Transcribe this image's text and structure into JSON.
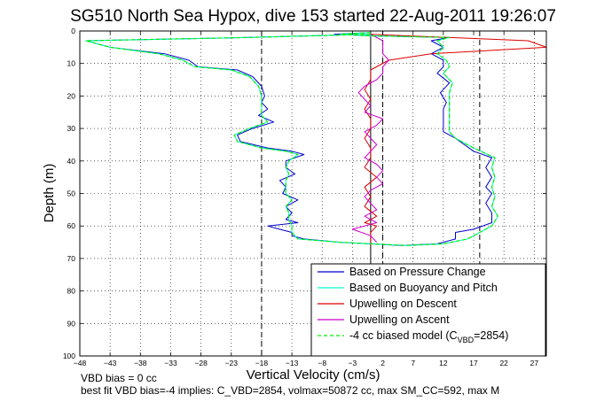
{
  "chart_data": {
    "type": "line",
    "title": "SG510 North Sea Hypox, dive 153 started 22-Aug-2011 19:26:07",
    "xlabel": "Vertical Velocity (cm/s)",
    "ylabel": "Depth (m)",
    "xlim": [
      -48,
      29
    ],
    "ylim": [
      0,
      100
    ],
    "y_reversed": true,
    "grid": true,
    "x_ticks": [
      -48,
      -43,
      -38,
      -33,
      -28,
      -23,
      -18,
      -13,
      -8,
      -3,
      2,
      7,
      12,
      17,
      22,
      27
    ],
    "y_ticks": [
      0,
      10,
      20,
      30,
      40,
      50,
      60,
      70,
      80,
      90,
      100
    ],
    "legend_position": "bottom-right",
    "vertical_lines": [
      {
        "x": -18,
        "style": "dashed"
      },
      {
        "x": 0,
        "style": "solid"
      },
      {
        "x": 2,
        "style": "dashed"
      },
      {
        "x": 18,
        "style": "dashed"
      }
    ],
    "series": [
      {
        "name": "Based on Pressure Change",
        "color": "#0000cc",
        "points": [
          [
            0,
            1
          ],
          [
            -20,
            2
          ],
          [
            -47,
            3
          ],
          [
            -43,
            5
          ],
          [
            -34,
            7
          ],
          [
            -30,
            9
          ],
          [
            -28.5,
            11
          ],
          [
            -22,
            12
          ],
          [
            -19.5,
            14
          ],
          [
            -18,
            17
          ],
          [
            -17.5,
            20
          ],
          [
            -18,
            22
          ],
          [
            -17,
            24
          ],
          [
            -18.5,
            26
          ],
          [
            -16,
            28
          ],
          [
            -19.5,
            30
          ],
          [
            -22,
            32
          ],
          [
            -21.5,
            34
          ],
          [
            -17,
            36
          ],
          [
            -13,
            37
          ],
          [
            -11,
            38
          ],
          [
            -14,
            40
          ],
          [
            -14,
            42
          ],
          [
            -12.5,
            44
          ],
          [
            -15,
            46
          ],
          [
            -14,
            48
          ],
          [
            -14.5,
            50
          ],
          [
            -12,
            52
          ],
          [
            -14,
            54
          ],
          [
            -13,
            56
          ],
          [
            -14,
            58
          ],
          [
            -12,
            59
          ],
          [
            -17,
            60
          ],
          [
            -15,
            61
          ],
          [
            -13,
            62
          ],
          [
            -13,
            63
          ],
          [
            -11,
            64
          ],
          [
            -5,
            65
          ],
          [
            0,
            65.5
          ],
          [
            5,
            66
          ],
          [
            11,
            65.5
          ],
          [
            14,
            64
          ],
          [
            14,
            62
          ],
          [
            17,
            61
          ],
          [
            20,
            59
          ],
          [
            20,
            56
          ],
          [
            19,
            53
          ],
          [
            20,
            50
          ],
          [
            19,
            48
          ],
          [
            20,
            45
          ],
          [
            19,
            42
          ],
          [
            20,
            39
          ],
          [
            17,
            37
          ],
          [
            14,
            33
          ],
          [
            12,
            31
          ],
          [
            12,
            29
          ],
          [
            12,
            26
          ],
          [
            12,
            24
          ],
          [
            12.5,
            22
          ],
          [
            11.5,
            19
          ],
          [
            13,
            16
          ],
          [
            11,
            13
          ],
          [
            12,
            11
          ],
          [
            12,
            9
          ],
          [
            10,
            7
          ],
          [
            12,
            5
          ],
          [
            10,
            3
          ],
          [
            13,
            2
          ],
          [
            0,
            1.5
          ],
          [
            -6,
            1
          ],
          [
            0,
            0.5
          ]
        ]
      },
      {
        "name": "Based on Buoyancy and Pitch",
        "color": "#00ffcc",
        "points": [
          [
            0,
            1
          ],
          [
            -20,
            2
          ],
          [
            -47,
            3
          ],
          [
            -43,
            5
          ],
          [
            -35,
            7
          ],
          [
            -31,
            9
          ],
          [
            -29,
            11
          ],
          [
            -23,
            12
          ],
          [
            -20,
            14
          ],
          [
            -18.5,
            17
          ],
          [
            -18,
            20
          ],
          [
            -18,
            23
          ],
          [
            -18,
            26
          ],
          [
            -17,
            28
          ],
          [
            -20,
            30
          ],
          [
            -22.5,
            32
          ],
          [
            -22,
            34
          ],
          [
            -18,
            36
          ],
          [
            -14,
            37
          ],
          [
            -12,
            38
          ],
          [
            -13.5,
            40
          ],
          [
            -14,
            42
          ],
          [
            -13.5,
            44
          ],
          [
            -14,
            46
          ],
          [
            -14,
            48
          ],
          [
            -14,
            50
          ],
          [
            -13,
            52
          ],
          [
            -14,
            54
          ],
          [
            -13.5,
            56
          ],
          [
            -13.5,
            58
          ],
          [
            -13,
            60
          ],
          [
            -13,
            62
          ],
          [
            -12,
            64
          ],
          [
            -5,
            65
          ],
          [
            0,
            65.5
          ],
          [
            6,
            66
          ],
          [
            12,
            65.5
          ],
          [
            16,
            64
          ],
          [
            18,
            62
          ],
          [
            20,
            60
          ],
          [
            21,
            57
          ],
          [
            20,
            54
          ],
          [
            20.5,
            51
          ],
          [
            20,
            48
          ],
          [
            20.5,
            45
          ],
          [
            20,
            42
          ],
          [
            20.5,
            39
          ],
          [
            17,
            36
          ],
          [
            14,
            33
          ],
          [
            13,
            31
          ],
          [
            13,
            29
          ],
          [
            13,
            26
          ],
          [
            13,
            24
          ],
          [
            13,
            22
          ],
          [
            13,
            19
          ],
          [
            13.5,
            16
          ],
          [
            12,
            13
          ],
          [
            13,
            11
          ],
          [
            12.5,
            9
          ],
          [
            11,
            7
          ],
          [
            12,
            5
          ],
          [
            11,
            3
          ],
          [
            13,
            2
          ],
          [
            0,
            1.5
          ],
          [
            -5,
            1
          ],
          [
            0,
            0.5
          ]
        ]
      },
      {
        "name": "Upwelling on Descent",
        "color": "#dd0000",
        "points": [
          [
            0,
            1
          ],
          [
            26,
            3
          ],
          [
            29,
            5
          ],
          [
            10,
            7
          ],
          [
            3,
            9
          ],
          [
            0,
            12
          ],
          [
            0,
            15
          ],
          [
            -1,
            18
          ],
          [
            0,
            21
          ],
          [
            -1,
            24
          ],
          [
            0,
            27
          ],
          [
            0,
            30
          ],
          [
            -1,
            33
          ],
          [
            0,
            36
          ],
          [
            0,
            39
          ],
          [
            -1,
            42
          ],
          [
            1,
            45
          ],
          [
            -1,
            48
          ],
          [
            0,
            51
          ],
          [
            -1,
            54
          ],
          [
            1,
            57
          ],
          [
            -1,
            59
          ],
          [
            1,
            60
          ],
          [
            0,
            62
          ],
          [
            0,
            64
          ],
          [
            0,
            66
          ]
        ]
      },
      {
        "name": "Upwelling on Ascent",
        "color": "#cc00cc",
        "points": [
          [
            0,
            1
          ],
          [
            2,
            3
          ],
          [
            2,
            5
          ],
          [
            2,
            7
          ],
          [
            3,
            9
          ],
          [
            2,
            11
          ],
          [
            2,
            13
          ],
          [
            1,
            15
          ],
          [
            -1,
            17
          ],
          [
            -2,
            19
          ],
          [
            -1,
            21
          ],
          [
            0,
            23
          ],
          [
            -1,
            25
          ],
          [
            2,
            27
          ],
          [
            1,
            29
          ],
          [
            -1,
            31
          ],
          [
            0,
            33
          ],
          [
            1,
            35
          ],
          [
            0,
            37
          ],
          [
            -1,
            39
          ],
          [
            1,
            41
          ],
          [
            2,
            43
          ],
          [
            1,
            45
          ],
          [
            2,
            47
          ],
          [
            0,
            49
          ],
          [
            -1,
            51
          ],
          [
            0,
            53
          ],
          [
            1,
            55
          ],
          [
            -1,
            57
          ],
          [
            1,
            59
          ],
          [
            -3,
            61
          ],
          [
            0,
            63
          ],
          [
            1,
            65
          ]
        ]
      },
      {
        "name": "-4 cc biased model (C_VBD=2854)",
        "color": "#00ee00",
        "dashed": true,
        "points": [
          [
            0,
            1
          ],
          [
            -20,
            2
          ],
          [
            -47,
            3
          ],
          [
            -43,
            5
          ],
          [
            -35,
            7
          ],
          [
            -31,
            9
          ],
          [
            -29,
            11
          ],
          [
            -23,
            12
          ],
          [
            -20,
            14
          ],
          [
            -18.5,
            17
          ],
          [
            -18,
            20
          ],
          [
            -18,
            23
          ],
          [
            -18,
            26
          ],
          [
            -17,
            28
          ],
          [
            -20,
            30
          ],
          [
            -22.5,
            32
          ],
          [
            -22,
            34
          ],
          [
            -18,
            36
          ],
          [
            -14,
            37
          ],
          [
            -12,
            38
          ],
          [
            -13.5,
            40
          ],
          [
            -14,
            42
          ],
          [
            -13.5,
            44
          ],
          [
            -14,
            46
          ],
          [
            -14,
            48
          ],
          [
            -14,
            50
          ],
          [
            -13,
            52
          ],
          [
            -14,
            54
          ],
          [
            -13.5,
            56
          ],
          [
            -13.5,
            58
          ],
          [
            -13,
            60
          ],
          [
            -13,
            62
          ],
          [
            -12,
            64
          ],
          [
            -5,
            65
          ],
          [
            0,
            65.5
          ],
          [
            6,
            66
          ],
          [
            12,
            65.5
          ],
          [
            16,
            64
          ],
          [
            18,
            62
          ],
          [
            20,
            60
          ],
          [
            21,
            57
          ],
          [
            20,
            54
          ],
          [
            20.5,
            51
          ],
          [
            20,
            48
          ],
          [
            20.5,
            45
          ],
          [
            20,
            42
          ],
          [
            20.5,
            39
          ],
          [
            17,
            36
          ],
          [
            14,
            33
          ],
          [
            13,
            31
          ],
          [
            13,
            29
          ],
          [
            13,
            26
          ],
          [
            13,
            24
          ],
          [
            13,
            22
          ],
          [
            13,
            19
          ],
          [
            13.5,
            16
          ],
          [
            12,
            13
          ],
          [
            13,
            11
          ],
          [
            12.5,
            9
          ],
          [
            11,
            7
          ],
          [
            12,
            5
          ],
          [
            11,
            3
          ],
          [
            13,
            2
          ],
          [
            0,
            1.5
          ],
          [
            -5,
            1
          ],
          [
            0,
            0.5
          ]
        ]
      }
    ],
    "legend": {
      "entries": [
        "Based on Pressure Change",
        "Based on Buoyancy and Pitch",
        "Upwelling on Descent",
        "Upwelling on Ascent"
      ],
      "model_prefix": "-4 cc biased model (C",
      "model_subscript": "VBD",
      "model_suffix": "=2854)"
    },
    "annotations": {
      "line1": "VBD bias = 0 cc",
      "line2": "best fit VBD bias=-4 implies: C_VBD=2854, volmax=50872 cc, max SM_CC=592, max M"
    }
  }
}
